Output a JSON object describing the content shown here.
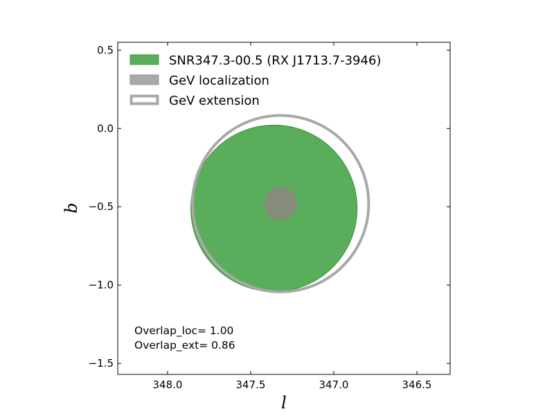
{
  "chart_data": {
    "type": "scatter",
    "xlabel": "l",
    "ylabel": "b",
    "xlim": [
      348.3,
      346.3
    ],
    "ylim": [
      -1.57,
      0.55
    ],
    "x_inverted": true,
    "xticks": [
      348.0,
      347.5,
      347.0,
      346.5
    ],
    "xtick_labels": [
      "348.0",
      "347.5",
      "347.0",
      "346.5"
    ],
    "yticks": [
      0.5,
      0.0,
      -0.5,
      -1.0,
      -1.5
    ],
    "ytick_labels": [
      "0.5",
      "0.0",
      "−0.5",
      "−1.0",
      "−1.5"
    ],
    "grid": false,
    "legend_position": "top-left",
    "legend": [
      {
        "label": "SNR347.3-00.5 (RX J1713.7-3946)",
        "style": "filled",
        "color": "#5aad5a",
        "edge": "#3d9a3d"
      },
      {
        "label": "GeV localization",
        "style": "filled",
        "color": "#a8a8a8",
        "edge": "#999999"
      },
      {
        "label": "GeV extension",
        "style": "outline",
        "color": "#a8a8a8"
      }
    ],
    "circles": [
      {
        "name": "snr",
        "l": 347.36,
        "b": -0.51,
        "r": 0.5,
        "fill": "#5aad5a",
        "edge": "#3d9a3d"
      },
      {
        "name": "gev-extension",
        "l": 347.32,
        "b": -0.48,
        "r": 0.53,
        "fill": "none",
        "edge": "#a8a8a8"
      },
      {
        "name": "gev-localization",
        "l": 347.32,
        "b": -0.48,
        "r": 0.1,
        "fill": "#868c7a",
        "edge": "none"
      }
    ],
    "annotations": [
      "Overlap_loc= 1.00",
      "Overlap_ext= 0.86"
    ]
  }
}
